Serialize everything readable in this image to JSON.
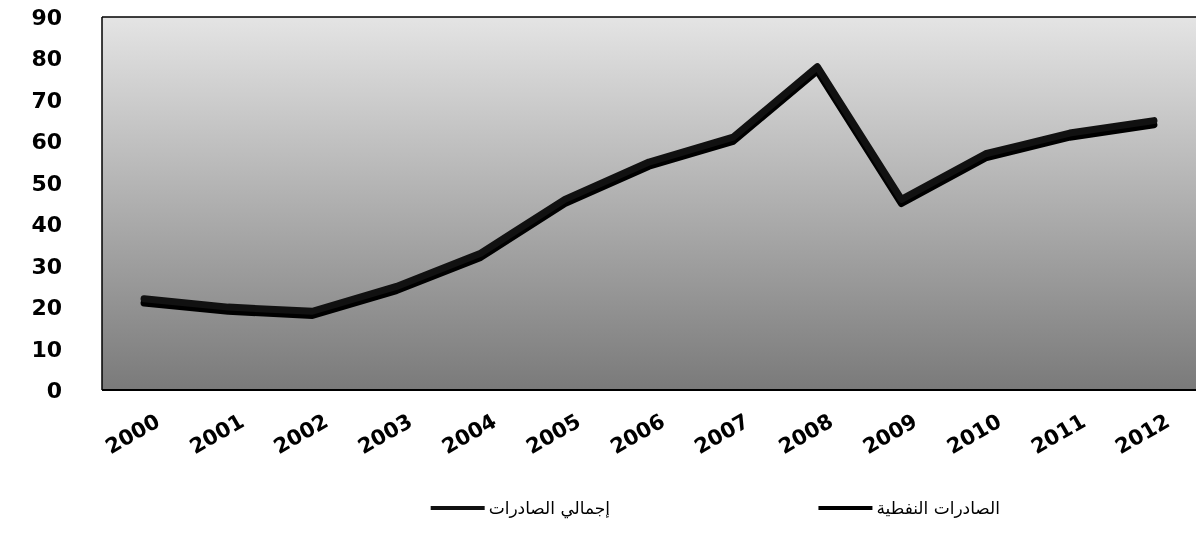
{
  "chart_data": {
    "type": "line",
    "categories": [
      "2000",
      "2001",
      "2002",
      "2003",
      "2004",
      "2005",
      "2006",
      "2007",
      "2008",
      "2009",
      "2010",
      "2011",
      "2012"
    ],
    "series": [
      {
        "name": "الصادرات النفطية",
        "color": "#000000",
        "values": [
          21,
          19,
          18,
          24,
          32,
          45,
          54,
          60,
          77,
          45,
          56,
          61,
          64
        ]
      },
      {
        "name": "إجمالي الصادرات",
        "color": "#111111",
        "values": [
          22,
          20,
          19,
          25,
          33,
          46,
          55,
          61,
          78,
          46,
          57,
          62,
          65
        ]
      }
    ],
    "ylim": [
      0,
      90
    ],
    "yticks": [
      0,
      10,
      20,
      30,
      40,
      50,
      60,
      70,
      80,
      90
    ],
    "grid": false,
    "legend": "bottom",
    "marker": "none",
    "line_style": "solid"
  }
}
